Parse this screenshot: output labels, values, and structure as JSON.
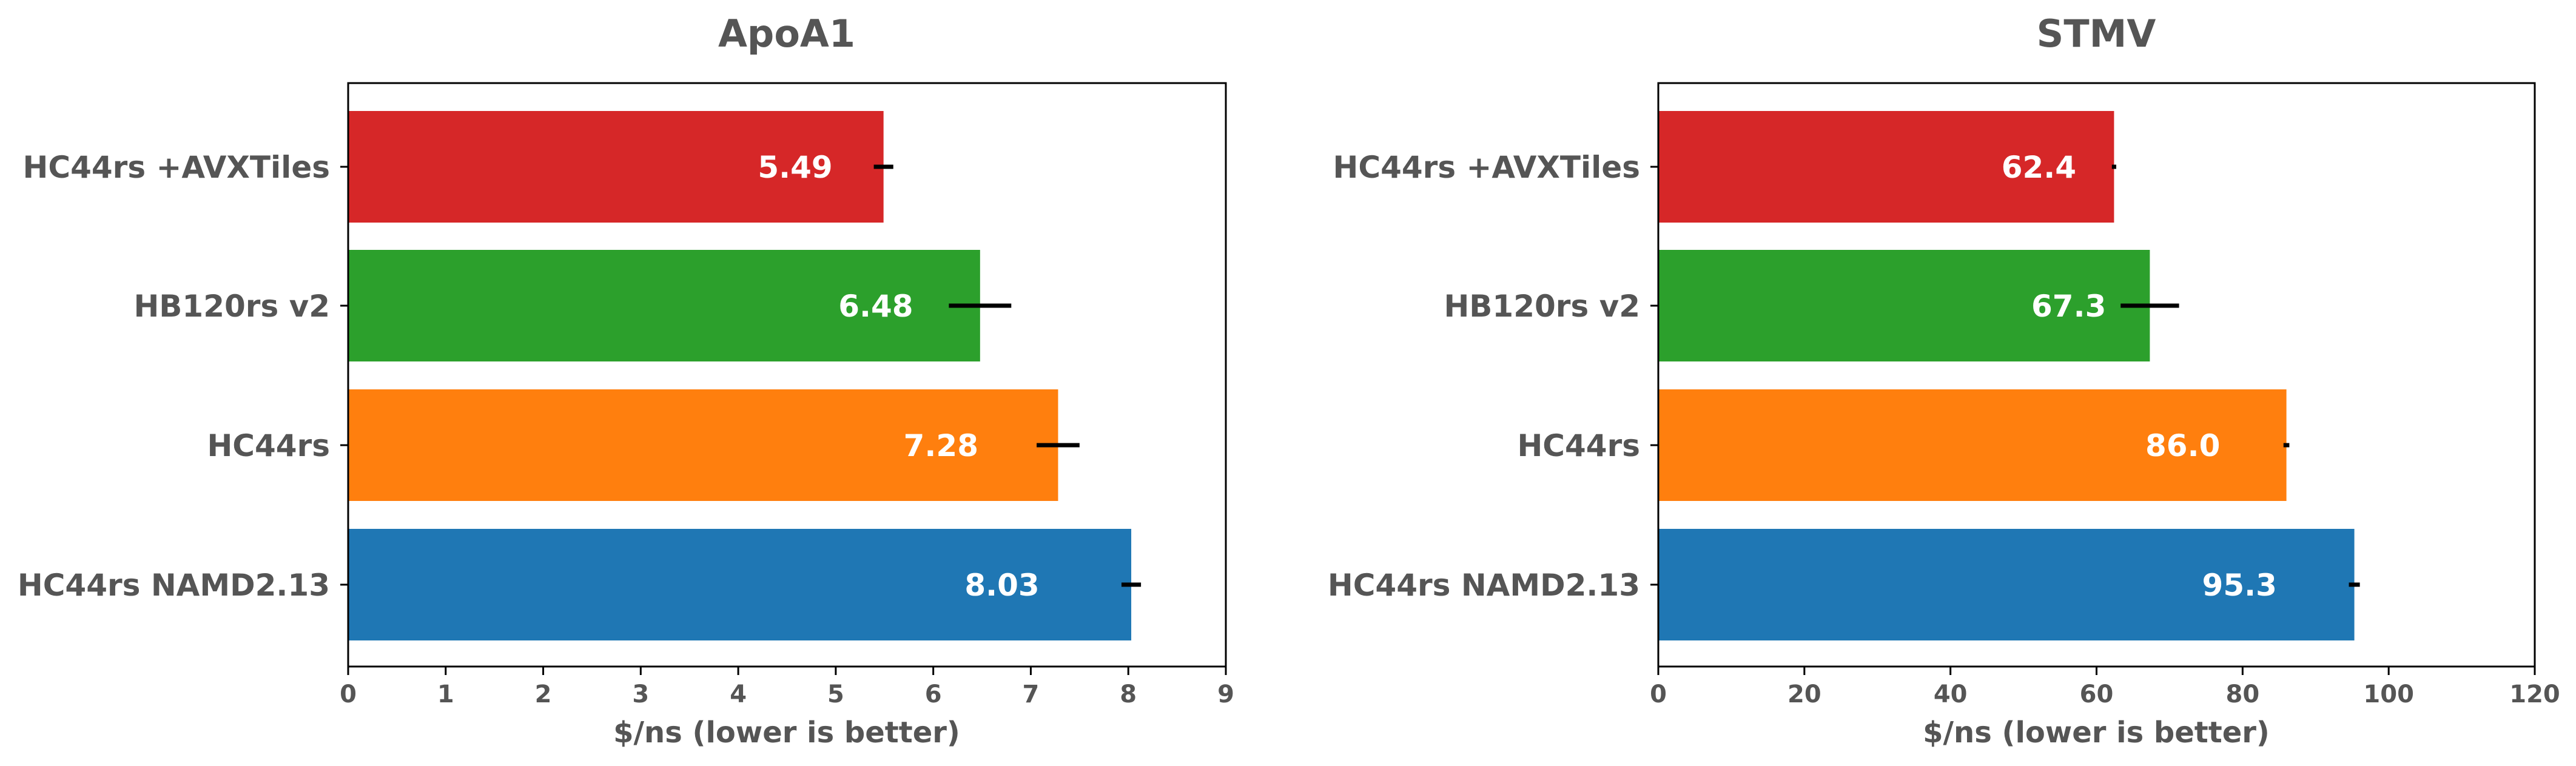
{
  "chart_data": [
    {
      "type": "bar",
      "orientation": "horizontal",
      "title": "ApoA1",
      "xlabel": "$/ns (lower is better)",
      "ylabel": "",
      "xlim": [
        0,
        9
      ],
      "xticks": [
        "0",
        "1",
        "2",
        "3",
        "4",
        "5",
        "6",
        "7",
        "8",
        "9"
      ],
      "grid": false,
      "categories": [
        "HC44rs +AVXTiles",
        "HB120rs v2",
        "HC44rs",
        "HC44rs NAMD2.13"
      ],
      "values": [
        5.49,
        6.48,
        7.28,
        8.03
      ],
      "errors": [
        0.1,
        0.32,
        0.22,
        0.1
      ],
      "value_labels": [
        "5.49",
        "6.48",
        "7.28",
        "8.03"
      ],
      "colors": [
        "#d62728",
        "#2ca02c",
        "#ff7f0e",
        "#1f77b4"
      ]
    },
    {
      "type": "bar",
      "orientation": "horizontal",
      "title": "STMV",
      "xlabel": "$/ns (lower is better)",
      "ylabel": "",
      "xlim": [
        0,
        120
      ],
      "xticks": [
        "0",
        "20",
        "40",
        "60",
        "80",
        "100",
        "120"
      ],
      "grid": false,
      "categories": [
        "HC44rs +AVXTiles",
        "HB120rs v2",
        "HC44rs",
        "HC44rs NAMD2.13"
      ],
      "values": [
        62.4,
        67.3,
        86.0,
        95.3
      ],
      "errors": [
        0.3,
        4.0,
        0.4,
        0.75
      ],
      "value_labels": [
        "62.4",
        "67.3",
        "86.0",
        "95.3"
      ],
      "colors": [
        "#d62728",
        "#2ca02c",
        "#ff7f0e",
        "#1f77b4"
      ]
    }
  ],
  "style": {
    "text_color": "#555555",
    "axis_color": "#000000",
    "bar_label_color": "#ffffff"
  }
}
